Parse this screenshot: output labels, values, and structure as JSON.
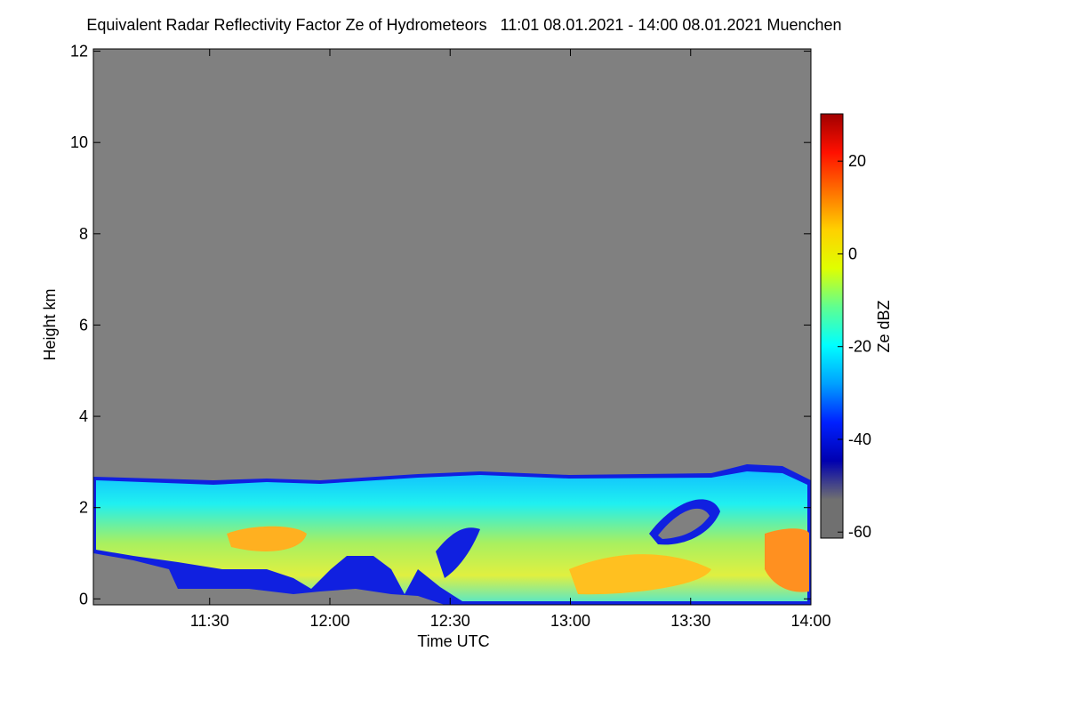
{
  "chart_data": {
    "type": "heatmap",
    "title": "Equivalent Radar Reflectivity Factor Ze of Hydrometeors   11:01 08.01.2021 - 14:00 08.01.2021 Muenchen",
    "x_label": "Time UTC",
    "y_label": "Height km",
    "xlim": [
      661,
      840
    ],
    "xticks": [
      {
        "value": 690,
        "label": "11:30"
      },
      {
        "value": 720,
        "label": "12:00"
      },
      {
        "value": 750,
        "label": "12:30"
      },
      {
        "value": 780,
        "label": "13:00"
      },
      {
        "value": 810,
        "label": "13:30"
      },
      {
        "value": 840,
        "label": "14:00"
      }
    ],
    "ylim": [
      -0.13,
      12.05
    ],
    "yticks": [
      0,
      2,
      4,
      6,
      8,
      10,
      12
    ],
    "colorbar": {
      "label": "Ze dBZ",
      "lim": [
        -61.3,
        30.2
      ],
      "ticks": [
        20,
        0,
        -20,
        -40,
        -60
      ],
      "colormap": [
        "#707070",
        "#707070",
        "#0000b0",
        "#0020ff",
        "#00a0ff",
        "#00ffff",
        "#60ff90",
        "#e0ff00",
        "#ffd000",
        "#ff7000",
        "#ff1000",
        "#a00000"
      ]
    },
    "background_color": "#808080"
  }
}
